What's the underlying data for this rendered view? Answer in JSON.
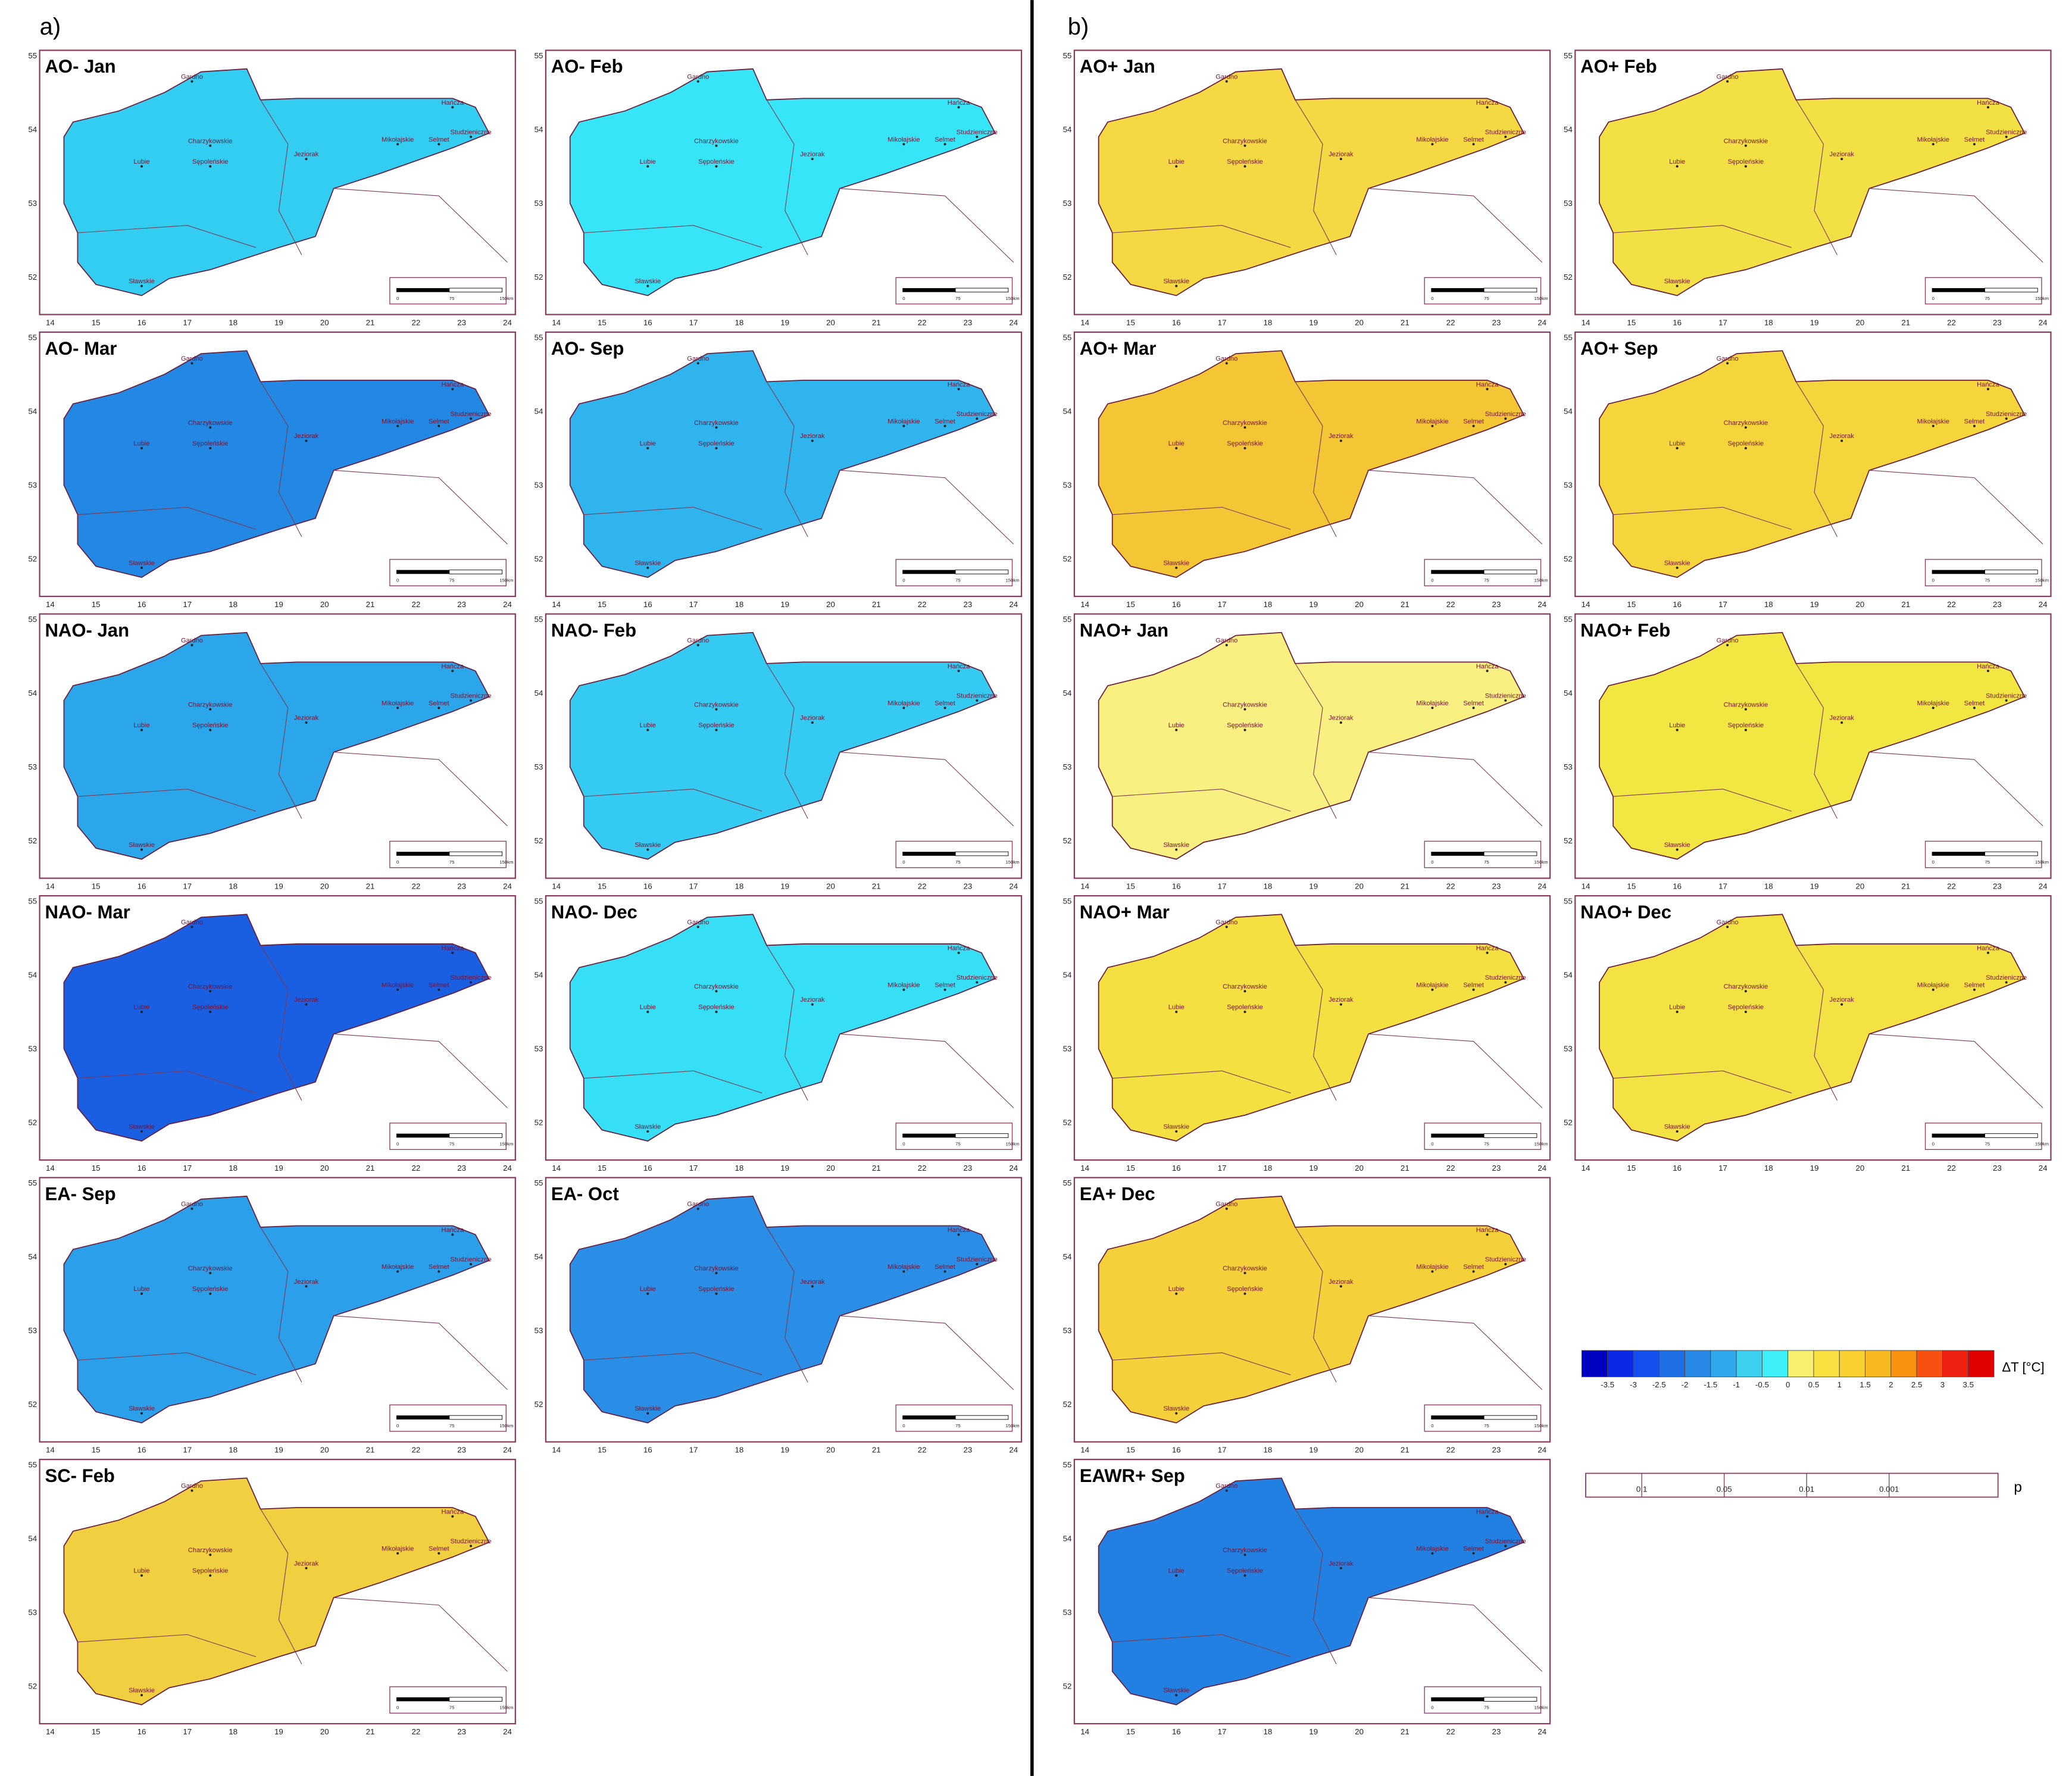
{
  "labels": {
    "a": "a)",
    "b": "b)"
  },
  "lakes": [
    "Gardno",
    "Charzykowskie",
    "Sępoleńskie",
    "Lubie",
    "Sławskie",
    "Jeziorak",
    "Mikołajskie",
    "Selmet",
    "Studzieniczne",
    "Hańcza"
  ],
  "lon_ticks": [
    14,
    15,
    16,
    17,
    18,
    19,
    20,
    21,
    22,
    23,
    24
  ],
  "lat_ticks": [
    52,
    53,
    54,
    55
  ],
  "scale": [
    "0",
    "75",
    "150km"
  ],
  "panels_a": [
    {
      "title": "AO- Jan",
      "color": "#34cdf2"
    },
    {
      "title": "AO- Feb",
      "color": "#36e6f8"
    },
    {
      "title": "AO- Mar",
      "color": "#2288e4"
    },
    {
      "title": "AO- Sep",
      "color": "#30b4ee"
    },
    {
      "title": "NAO- Jan",
      "color": "#2ca6ea"
    },
    {
      "title": "NAO- Feb",
      "color": "#34caf2"
    },
    {
      "title": "NAO- Mar",
      "color": "#1a5ee2"
    },
    {
      "title": "NAO- Dec",
      "color": "#36def6"
    },
    {
      "title": "EA- Sep",
      "color": "#2c9fea"
    },
    {
      "title": "EA- Oct",
      "color": "#2a8ee6"
    },
    {
      "title": "SC- Feb",
      "color": "#f0d040"
    }
  ],
  "panels_b": [
    {
      "title": "AO+ Jan",
      "color": "#f4d844"
    },
    {
      "title": "AO+ Feb",
      "color": "#f2e044"
    },
    {
      "title": "AO+ Mar",
      "color": "#f4c636"
    },
    {
      "title": "AO+ Sep",
      "color": "#f4d63c"
    },
    {
      "title": "NAO+ Jan",
      "color": "#f8f080"
    },
    {
      "title": "NAO+ Feb",
      "color": "#f2e642"
    },
    {
      "title": "NAO+ Mar",
      "color": "#f4e040"
    },
    {
      "title": "NAO+ Dec",
      "color": "#f4e244"
    },
    {
      "title": "EA+ Dec",
      "color": "#f4d03a"
    },
    {
      "title": "EAWR+ Sep",
      "color": "#2280e2"
    }
  ],
  "legend": {
    "unit": "ΔT [°C]",
    "ticks": [
      -3.5,
      -3,
      -2.5,
      -2,
      -1.5,
      -1,
      -0.5,
      0,
      0.5,
      1,
      1.5,
      2,
      2.5,
      3,
      3.5
    ],
    "colors": [
      "#0000c0",
      "#0a28e6",
      "#1450f0",
      "#1e6ee6",
      "#2888e6",
      "#30a8ee",
      "#3cd0f0",
      "#40f0f8",
      "#f8f070",
      "#f8e040",
      "#f8d030",
      "#f8b820",
      "#f89010",
      "#f85010",
      "#f02010",
      "#e00000"
    ]
  },
  "p_legend": {
    "ticks": [
      "0.1",
      "0.05",
      "0.01",
      "0.001"
    ],
    "label": "p"
  }
}
